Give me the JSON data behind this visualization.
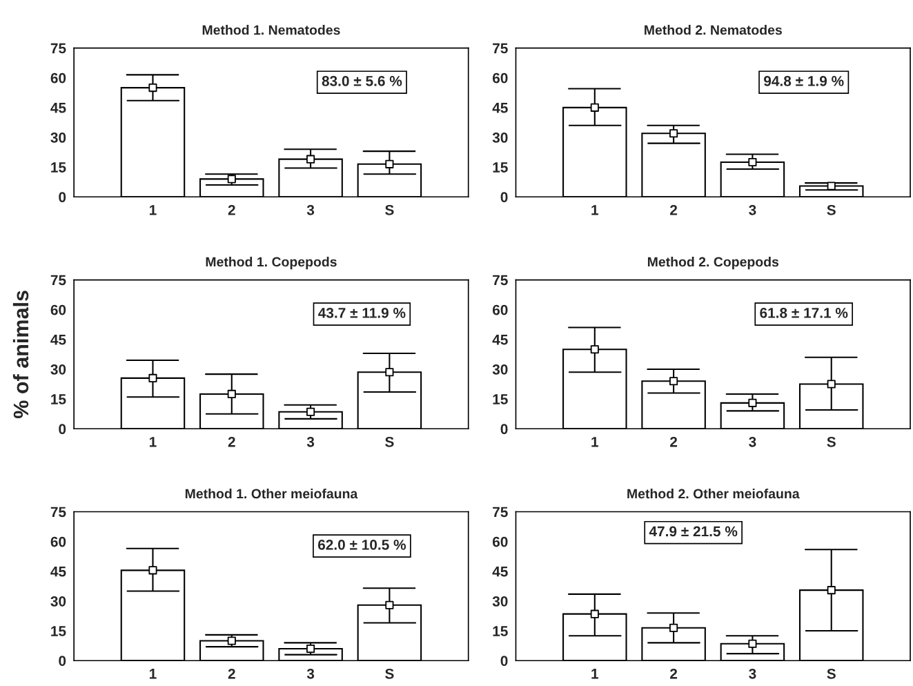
{
  "chart_data": [
    {
      "type": "bar",
      "title": "Method 1. Nematodes",
      "categories": [
        "1",
        "2",
        "3",
        "S"
      ],
      "marker": "square",
      "ylim": [
        0,
        75
      ],
      "yticks": [
        0,
        15,
        30,
        45,
        60,
        75
      ],
      "annotations": [
        "83.0 ± 5.6 %"
      ],
      "grid": false,
      "legend": false,
      "series": [
        {
          "color": "#ffffff",
          "values": [
            55,
            9,
            19,
            16.5
          ]
        },
        {
          "type": "scatter",
          "color": "#ffffff",
          "x": [
            "1",
            "2",
            "3",
            "S"
          ],
          "values": [
            55,
            9,
            19,
            16.5
          ],
          "errors": [
            [
              48.5,
              61.5
            ],
            [
              6,
              11.5
            ],
            [
              14.5,
              24
            ],
            [
              11.5,
              23
            ]
          ]
        }
      ]
    },
    {
      "type": "bar",
      "title": "Method 2. Nematodes",
      "categories": [
        "1",
        "2",
        "3",
        "S"
      ],
      "marker": "square",
      "ylim": [
        0,
        75
      ],
      "yticks": [
        0,
        15,
        30,
        45,
        60,
        75
      ],
      "annotations": [
        "94.8 ± 1.9 %"
      ],
      "grid": false,
      "legend": false,
      "series": [
        {
          "color": "#ffffff",
          "values": [
            45,
            32,
            17.5,
            5.5
          ]
        },
        {
          "type": "scatter",
          "color": "#ffffff",
          "x": [
            "1",
            "2",
            "3",
            "S"
          ],
          "values": [
            45,
            32,
            17.5,
            5.5
          ],
          "errors": [
            [
              36,
              54.5
            ],
            [
              27,
              36
            ],
            [
              14,
              21.5
            ],
            [
              3.5,
              7
            ]
          ]
        }
      ]
    },
    {
      "type": "bar",
      "title": "Method 1. Copepods",
      "ylabel": "% of animals",
      "categories": [
        "1",
        "2",
        "3",
        "S"
      ],
      "marker": "square",
      "ylim": [
        0,
        75
      ],
      "yticks": [
        0,
        15,
        30,
        45,
        60,
        75
      ],
      "annotations": [
        "43.7 ± 11.9 %"
      ],
      "grid": false,
      "legend": false,
      "series": [
        {
          "color": "#ffffff",
          "values": [
            25.5,
            17.5,
            8.5,
            28.5
          ]
        },
        {
          "type": "scatter",
          "color": "#ffffff",
          "x": [
            "1",
            "2",
            "3",
            "S"
          ],
          "values": [
            25.5,
            17.5,
            8.5,
            28.5
          ],
          "errors": [
            [
              16,
              34.5
            ],
            [
              7.5,
              27.5
            ],
            [
              5,
              12
            ],
            [
              18.5,
              38
            ]
          ]
        }
      ]
    },
    {
      "type": "bar",
      "title": "Method 2. Copepods",
      "categories": [
        "1",
        "2",
        "3",
        "S"
      ],
      "marker": "square",
      "ylim": [
        0,
        75
      ],
      "yticks": [
        0,
        15,
        30,
        45,
        60,
        75
      ],
      "annotations": [
        "61.8 ± 17.1 %"
      ],
      "grid": false,
      "legend": false,
      "series": [
        {
          "color": "#ffffff",
          "values": [
            40,
            24,
            13,
            22.5
          ]
        },
        {
          "type": "scatter",
          "color": "#ffffff",
          "x": [
            "1",
            "2",
            "3",
            "S"
          ],
          "values": [
            40,
            24,
            13,
            22.5
          ],
          "errors": [
            [
              28.5,
              51
            ],
            [
              18,
              30
            ],
            [
              9,
              17.5
            ],
            [
              9.5,
              36
            ]
          ]
        }
      ]
    },
    {
      "type": "bar",
      "title": "Method 1. Other meiofauna",
      "categories": [
        "1",
        "2",
        "3",
        "S"
      ],
      "marker": "square",
      "ylim": [
        0,
        75
      ],
      "yticks": [
        0,
        15,
        30,
        45,
        60,
        75
      ],
      "annotations": [
        "62.0 ± 10.5 %"
      ],
      "grid": false,
      "legend": false,
      "series": [
        {
          "color": "#ffffff",
          "values": [
            45.5,
            10,
            6,
            28
          ]
        },
        {
          "type": "scatter",
          "color": "#ffffff",
          "x": [
            "1",
            "2",
            "3",
            "S"
          ],
          "values": [
            45.5,
            10,
            6,
            28
          ],
          "errors": [
            [
              35,
              56.5
            ],
            [
              7,
              13
            ],
            [
              3,
              9
            ],
            [
              19,
              36.5
            ]
          ]
        }
      ]
    },
    {
      "type": "bar",
      "title": "Method 2. Other meiofauna",
      "categories": [
        "1",
        "2",
        "3",
        "S"
      ],
      "marker": "square",
      "ylim": [
        0,
        75
      ],
      "yticks": [
        0,
        15,
        30,
        45,
        60,
        75
      ],
      "annotations": [
        "47.9 ± 21.5 %"
      ],
      "grid": false,
      "legend": false,
      "series": [
        {
          "color": "#ffffff",
          "values": [
            23.5,
            16.5,
            8.5,
            35.5
          ]
        },
        {
          "type": "scatter",
          "color": "#ffffff",
          "x": [
            "1",
            "2",
            "3",
            "S"
          ],
          "values": [
            23.5,
            16.5,
            8.5,
            35.5
          ],
          "errors": [
            [
              12.5,
              33.5
            ],
            [
              9,
              24
            ],
            [
              3.5,
              12.5
            ],
            [
              15,
              56
            ]
          ]
        }
      ]
    }
  ]
}
